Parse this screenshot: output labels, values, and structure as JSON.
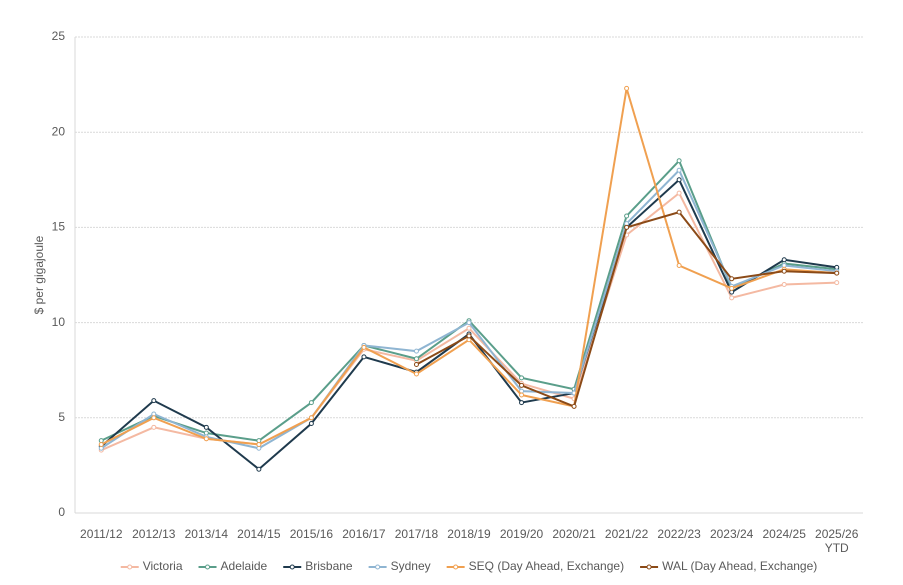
{
  "chart_data": {
    "type": "line",
    "y_label": "$ per gigajoule",
    "categories": [
      "2011/12",
      "2012/13",
      "2013/14",
      "2014/15",
      "2015/16",
      "2016/17",
      "2017/18",
      "2018/19",
      "2019/20",
      "2020/21",
      "2021/22",
      "2022/23",
      "2023/24",
      "2024/25",
      "2025/26 YTD"
    ],
    "series": [
      {
        "name": "Victoria",
        "color": "#f4b9a2",
        "values": [
          3.3,
          4.5,
          3.9,
          3.6,
          5.0,
          8.6,
          8.0,
          9.7,
          6.8,
          6.0,
          14.6,
          16.8,
          11.3,
          12.0,
          12.1
        ]
      },
      {
        "name": "Adelaide",
        "color": "#5a9e8a",
        "values": [
          3.8,
          5.1,
          4.2,
          3.8,
          5.8,
          8.8,
          8.1,
          10.1,
          7.1,
          6.5,
          15.6,
          18.5,
          11.8,
          13.1,
          12.8
        ]
      },
      {
        "name": "Brisbane",
        "color": "#1f3a4d",
        "values": [
          3.5,
          5.9,
          4.5,
          2.3,
          4.7,
          8.2,
          7.4,
          9.4,
          5.8,
          6.3,
          15.0,
          17.5,
          11.6,
          13.3,
          12.9
        ]
      },
      {
        "name": "Sydney",
        "color": "#8fb5d2",
        "values": [
          3.4,
          5.2,
          4.0,
          3.4,
          5.0,
          8.8,
          8.5,
          10.0,
          6.4,
          6.3,
          15.2,
          18.0,
          11.9,
          13.0,
          12.7
        ]
      },
      {
        "name": "SEQ (Day Ahead, Exchange)",
        "color": "#f0a050",
        "values": [
          3.6,
          5.0,
          3.9,
          3.6,
          5.0,
          8.7,
          7.3,
          9.1,
          6.2,
          5.6,
          22.3,
          13.0,
          11.8,
          12.8,
          12.6
        ]
      },
      {
        "name": "WAL (Day Ahead, Exchange)",
        "color": "#8b4a17",
        "values": [
          null,
          null,
          null,
          null,
          null,
          null,
          7.8,
          9.3,
          6.7,
          5.6,
          15.0,
          15.8,
          12.3,
          12.7,
          12.6
        ]
      }
    ],
    "ylim": [
      0,
      25
    ],
    "yticks": [
      0,
      5,
      10,
      15,
      20,
      25
    ],
    "grid": true,
    "legend": "bottom"
  }
}
